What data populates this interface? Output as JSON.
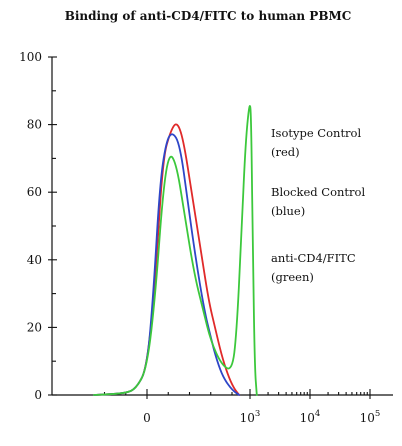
{
  "title": "Binding of anti-CD4/FITC to human PBMC",
  "chart_data": {
    "type": "line",
    "title": "Binding of anti-CD4/FITC to human PBMC",
    "xlabel": "",
    "ylabel": "",
    "x_axis_scale": "biexponential",
    "x_ticks": [
      {
        "base": "0",
        "exp": "",
        "value": 0
      },
      {
        "base": "10",
        "exp": "3",
        "value": 1000
      },
      {
        "base": "10",
        "exp": "4",
        "value": 10000
      },
      {
        "base": "10",
        "exp": "5",
        "value": 100000
      }
    ],
    "y_ticks": [
      "0",
      "20",
      "40",
      "60",
      "80",
      "100"
    ],
    "ylim": [
      0,
      100
    ],
    "grid": false,
    "legend_placement": "right",
    "series": [
      {
        "name": "Isotype Control (red)",
        "color": "#e02a2a",
        "x": [
          -500,
          -200,
          -100,
          0,
          80,
          150,
          220,
          280,
          340,
          420,
          500,
          580,
          640,
          700,
          760,
          820,
          880
        ],
        "y": [
          0,
          0.5,
          2,
          8,
          35,
          70,
          78,
          81,
          76,
          60,
          44,
          28,
          20,
          12,
          6,
          2,
          0
        ]
      },
      {
        "name": "Blocked Control (blue)",
        "color": "#2e46c8",
        "x": [
          -500,
          -200,
          -100,
          0,
          60,
          120,
          180,
          240,
          310,
          380,
          460,
          540,
          600,
          660,
          720,
          800,
          880
        ],
        "y": [
          0,
          0.5,
          2,
          8,
          30,
          62,
          75,
          78,
          74,
          58,
          40,
          25,
          17,
          10,
          5,
          1.5,
          0
        ]
      },
      {
        "name": "anti-CD4/FITC (green)",
        "color": "#3cc83c",
        "x": [
          -500,
          -200,
          -100,
          0,
          80,
          150,
          210,
          280,
          360,
          450,
          530,
          600,
          700,
          800,
          850,
          900,
          950,
          1000,
          1050,
          1120,
          1200,
          1300
        ],
        "y": [
          0,
          0.5,
          2,
          8,
          30,
          60,
          72,
          68,
          52,
          35,
          25,
          16,
          9,
          7,
          18,
          45,
          75,
          88,
          80,
          40,
          8,
          0
        ]
      }
    ],
    "legend": [
      {
        "line1": "Isotype Control",
        "line2": "(red)"
      },
      {
        "line1": "Blocked Control",
        "line2": "(blue)"
      },
      {
        "line1": "anti-CD4/FITC",
        "line2": "(green)"
      }
    ]
  }
}
